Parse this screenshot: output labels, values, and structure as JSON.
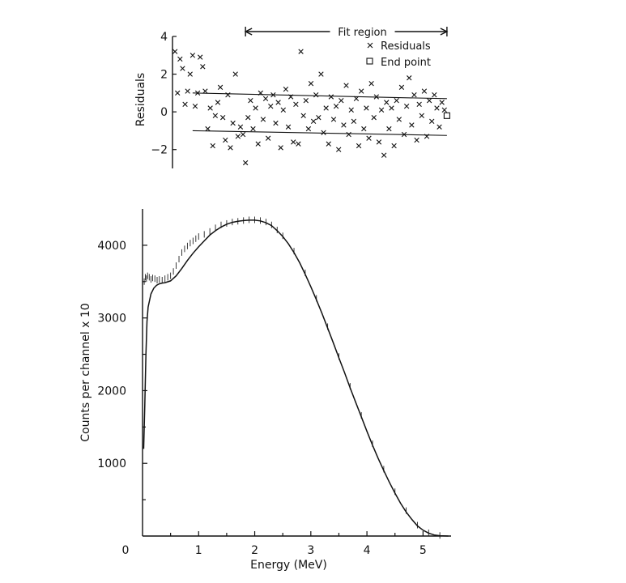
{
  "chart_data": [
    {
      "type": "scatter",
      "name_hint": "residuals",
      "ylabel": "Residuals",
      "xlim": [
        0,
        5.5
      ],
      "ylim": [
        -3,
        4
      ],
      "yticks": [
        {
          "value": 4,
          "label": "4"
        },
        {
          "value": 2,
          "label": "2"
        },
        {
          "value": 0,
          "label": "0"
        },
        {
          "value": -2,
          "label": "−2"
        }
      ],
      "fit_region": {
        "label": "Fit region",
        "x_start": 1.45,
        "x_end": 5.45
      },
      "legend": {
        "placement": "top-right",
        "entries": [
          {
            "marker": "x",
            "label": "Residuals"
          },
          {
            "marker": "square",
            "label": "End point"
          }
        ]
      },
      "band_lines": [
        {
          "x": [
            0.4,
            5.45
          ],
          "y": [
            1.0,
            0.7
          ]
        },
        {
          "x": [
            0.4,
            5.45
          ],
          "y": [
            -1.0,
            -1.25
          ]
        }
      ],
      "end_point": {
        "x": 5.45,
        "y": -0.2
      },
      "series": [
        {
          "marker": "x",
          "x": [
            0.05,
            0.1,
            0.15,
            0.2,
            0.25,
            0.3,
            0.35,
            0.4,
            0.45,
            0.5,
            0.55,
            0.6,
            0.65,
            0.7,
            0.75,
            0.8,
            0.85,
            0.9,
            0.95,
            1.0,
            1.05,
            1.1,
            1.15,
            1.2,
            1.25,
            1.3,
            1.35,
            1.4,
            1.45,
            1.5,
            1.55,
            1.6,
            1.65,
            1.7,
            1.75,
            1.8,
            1.85,
            1.9,
            1.95,
            2.0,
            2.05,
            2.1,
            2.15,
            2.2,
            2.25,
            2.3,
            2.35,
            2.4,
            2.45,
            2.5,
            2.55,
            2.6,
            2.65,
            2.7,
            2.75,
            2.8,
            2.85,
            2.9,
            2.95,
            3.0,
            3.05,
            3.1,
            3.15,
            3.2,
            3.25,
            3.3,
            3.35,
            3.4,
            3.45,
            3.5,
            3.55,
            3.6,
            3.65,
            3.7,
            3.75,
            3.8,
            3.85,
            3.9,
            3.95,
            4.0,
            4.05,
            4.1,
            4.15,
            4.2,
            4.25,
            4.3,
            4.35,
            4.4,
            4.45,
            4.5,
            4.55,
            4.6,
            4.65,
            4.7,
            4.75,
            4.8,
            4.85,
            4.9,
            4.95,
            5.0,
            5.05,
            5.1,
            5.15,
            5.2,
            5.25,
            5.3,
            5.35,
            5.4
          ],
          "y": [
            3.2,
            1.0,
            2.8,
            2.3,
            0.4,
            1.1,
            2.0,
            3.0,
            0.3,
            1.0,
            2.9,
            2.4,
            1.1,
            -0.9,
            0.2,
            -1.8,
            -0.2,
            0.5,
            1.3,
            -0.3,
            -1.5,
            0.9,
            -1.9,
            -0.6,
            2.0,
            -1.3,
            -0.8,
            -1.2,
            -2.7,
            -0.3,
            0.6,
            -0.9,
            0.2,
            -1.7,
            1.0,
            -0.4,
            0.7,
            -1.4,
            0.3,
            0.9,
            -0.6,
            0.5,
            -1.9,
            0.1,
            1.2,
            -0.8,
            0.8,
            -1.6,
            0.4,
            -1.7,
            3.2,
            -0.2,
            0.6,
            -0.9,
            1.5,
            -0.5,
            0.9,
            -0.3,
            2.0,
            -1.1,
            0.2,
            -1.7,
            0.8,
            -0.4,
            0.3,
            -2.0,
            0.6,
            -0.7,
            1.4,
            -1.2,
            0.1,
            -0.5,
            0.7,
            -1.8,
            1.1,
            -0.9,
            0.2,
            -1.4,
            1.5,
            -0.3,
            0.8,
            -1.6,
            0.1,
            -2.3,
            0.5,
            -0.9,
            0.2,
            -1.8,
            0.6,
            -0.4,
            1.3,
            -1.2,
            0.3,
            1.8,
            -0.7,
            0.9,
            -1.5,
            0.4,
            -0.2,
            1.1,
            -1.3,
            0.6,
            -0.5,
            0.9,
            0.2,
            -0.8,
            0.5,
            0.1
          ]
        }
      ]
    },
    {
      "type": "line",
      "name_hint": "spectrum",
      "xlabel": "Energy (MeV)",
      "ylabel": "Counts per channel x 10",
      "xlim": [
        0,
        5.5
      ],
      "ylim": [
        0,
        4500
      ],
      "origin_label": "0",
      "xticks": [
        {
          "value": 1,
          "label": "1"
        },
        {
          "value": 2,
          "label": "2"
        },
        {
          "value": 3,
          "label": "3"
        },
        {
          "value": 4,
          "label": "4"
        },
        {
          "value": 5,
          "label": "5"
        }
      ],
      "yticks": [
        {
          "value": 1000,
          "label": "1000"
        },
        {
          "value": 2000,
          "label": "2000"
        },
        {
          "value": 3000,
          "label": "3000"
        },
        {
          "value": 4000,
          "label": "4000"
        }
      ],
      "series": [
        {
          "style": "line",
          "x": [
            0.02,
            0.04,
            0.06,
            0.08,
            0.1,
            0.15,
            0.2,
            0.25,
            0.3,
            0.35,
            0.4,
            0.5,
            0.6,
            0.7,
            0.8,
            0.9,
            1.0,
            1.1,
            1.2,
            1.3,
            1.4,
            1.5,
            1.6,
            1.7,
            1.8,
            1.9,
            2.0,
            2.1,
            2.2,
            2.3,
            2.4,
            2.5,
            2.6,
            2.7,
            2.8,
            2.9,
            3.0,
            3.1,
            3.2,
            3.3,
            3.4,
            3.5,
            3.6,
            3.7,
            3.8,
            3.9,
            4.0,
            4.1,
            4.2,
            4.3,
            4.4,
            4.5,
            4.6,
            4.7,
            4.8,
            4.9,
            5.0,
            5.1,
            5.2,
            5.3,
            5.4,
            5.45
          ],
          "y": [
            1200,
            1800,
            2500,
            2950,
            3150,
            3330,
            3410,
            3450,
            3470,
            3480,
            3485,
            3510,
            3580,
            3680,
            3790,
            3890,
            3980,
            4060,
            4140,
            4200,
            4250,
            4290,
            4315,
            4330,
            4340,
            4345,
            4345,
            4335,
            4310,
            4270,
            4200,
            4120,
            4020,
            3900,
            3760,
            3600,
            3430,
            3250,
            3060,
            2860,
            2660,
            2450,
            2250,
            2040,
            1840,
            1640,
            1440,
            1250,
            1070,
            900,
            740,
            590,
            450,
            330,
            230,
            140,
            80,
            40,
            15,
            5,
            1,
            0
          ]
        },
        {
          "style": "points",
          "x": [
            0.03,
            0.05,
            0.07,
            0.09,
            0.12,
            0.15,
            0.18,
            0.22,
            0.26,
            0.3,
            0.35,
            0.4,
            0.45,
            0.5,
            0.55,
            0.6,
            0.65,
            0.7,
            0.75,
            0.8,
            0.85,
            0.9,
            0.95,
            1.0,
            1.1,
            1.2,
            1.3,
            1.4,
            1.5,
            1.6,
            1.7,
            1.8,
            1.9,
            2.0,
            2.1,
            2.2,
            2.3,
            2.4,
            2.5,
            2.7,
            2.9,
            3.1,
            3.3,
            3.5,
            3.7,
            3.9,
            4.1,
            4.3,
            4.5,
            4.7,
            4.9,
            5.1,
            5.3
          ],
          "y": [
            3500,
            3560,
            3540,
            3580,
            3560,
            3530,
            3550,
            3540,
            3520,
            3530,
            3520,
            3540,
            3560,
            3580,
            3640,
            3720,
            3810,
            3900,
            3950,
            3990,
            4030,
            4060,
            4090,
            4120,
            4150,
            4190,
            4240,
            4280,
            4300,
            4320,
            4330,
            4340,
            4350,
            4350,
            4340,
            4320,
            4280,
            4210,
            4130,
            3920,
            3620,
            3270,
            2880,
            2470,
            2060,
            1660,
            1270,
            920,
            610,
            350,
            150,
            45,
            8
          ]
        }
      ]
    }
  ]
}
